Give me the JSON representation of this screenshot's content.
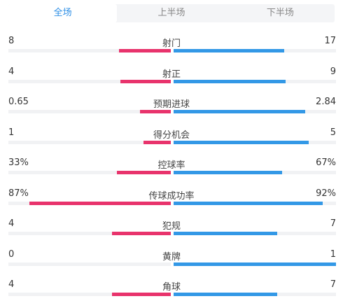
{
  "tabs": [
    {
      "label": "全场",
      "active": true
    },
    {
      "label": "上半场",
      "active": false
    },
    {
      "label": "下半场",
      "active": false
    }
  ],
  "colors": {
    "accent": "#2e8fe6",
    "home": "#e8336c",
    "away": "#3398e6",
    "track": "#f1f2f4"
  },
  "stats": [
    {
      "label": "射门",
      "home": "8",
      "away": "17",
      "home_frac": 0.32,
      "away_frac": 0.68
    },
    {
      "label": "射正",
      "home": "4",
      "away": "9",
      "home_frac": 0.31,
      "away_frac": 0.69
    },
    {
      "label": "预期进球",
      "home": "0.65",
      "away": "2.84",
      "home_frac": 0.19,
      "away_frac": 0.81
    },
    {
      "label": "得分机会",
      "home": "1",
      "away": "5",
      "home_frac": 0.17,
      "away_frac": 0.83
    },
    {
      "label": "控球率",
      "home": "33%",
      "away": "67%",
      "home_frac": 0.33,
      "away_frac": 0.67
    },
    {
      "label": "传球成功率",
      "home": "87%",
      "away": "92%",
      "home_frac": 0.87,
      "away_frac": 0.92
    },
    {
      "label": "犯规",
      "home": "4",
      "away": "7",
      "home_frac": 0.36,
      "away_frac": 0.64
    },
    {
      "label": "黄牌",
      "home": "0",
      "away": "1",
      "home_frac": 0.0,
      "away_frac": 1.0
    },
    {
      "label": "角球",
      "home": "4",
      "away": "7",
      "home_frac": 0.36,
      "away_frac": 0.64
    }
  ]
}
